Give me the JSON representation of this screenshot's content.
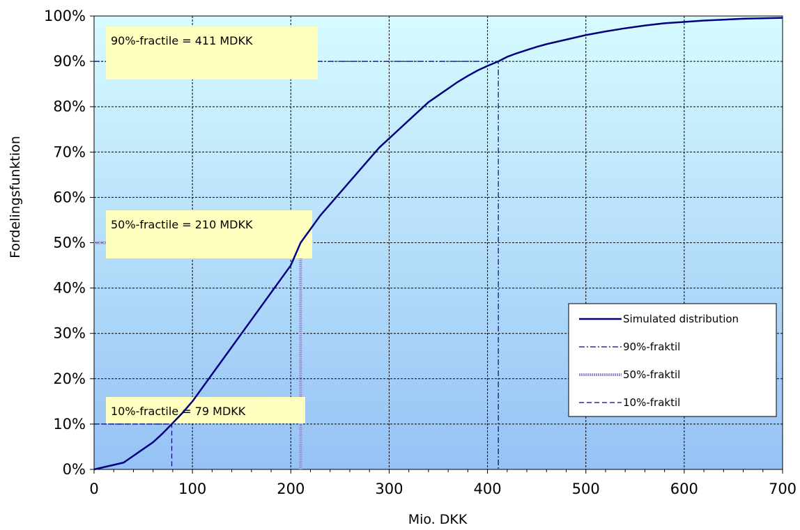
{
  "chart_data": {
    "type": "line",
    "xlabel": "Mio. DKK",
    "ylabel": "Fordelingsfunktion",
    "xlim": [
      0,
      700
    ],
    "ylim": [
      0,
      1
    ],
    "x_ticks": [
      0,
      100,
      200,
      300,
      400,
      500,
      600,
      700
    ],
    "x_tick_labels": [
      "0",
      "100",
      "200",
      "300",
      "400",
      "500",
      "600",
      "700"
    ],
    "y_ticks": [
      0,
      0.1,
      0.2,
      0.3,
      0.4,
      0.5,
      0.6,
      0.7,
      0.8,
      0.9,
      1.0
    ],
    "y_tick_labels": [
      "0%",
      "10%",
      "20%",
      "30%",
      "40%",
      "50%",
      "60%",
      "70%",
      "80%",
      "90%",
      "100%"
    ],
    "grid": true,
    "legend_position": "lower-right",
    "series": [
      {
        "name": "Simulated distribution",
        "color": "#000080",
        "style": "solid",
        "x": [
          0,
          10,
          20,
          30,
          40,
          50,
          60,
          70,
          79,
          90,
          100,
          110,
          120,
          130,
          140,
          150,
          160,
          170,
          180,
          190,
          200,
          210,
          220,
          230,
          240,
          250,
          260,
          270,
          280,
          290,
          300,
          310,
          320,
          330,
          340,
          350,
          360,
          370,
          380,
          390,
          400,
          411,
          420,
          430,
          440,
          450,
          460,
          470,
          480,
          490,
          500,
          520,
          540,
          560,
          580,
          600,
          620,
          640,
          660,
          680,
          700
        ],
        "y": [
          0.0,
          0.005,
          0.01,
          0.015,
          0.03,
          0.045,
          0.06,
          0.08,
          0.1,
          0.125,
          0.15,
          0.18,
          0.21,
          0.24,
          0.27,
          0.3,
          0.33,
          0.36,
          0.39,
          0.42,
          0.45,
          0.5,
          0.53,
          0.56,
          0.585,
          0.61,
          0.635,
          0.66,
          0.685,
          0.71,
          0.73,
          0.75,
          0.77,
          0.79,
          0.81,
          0.825,
          0.84,
          0.855,
          0.868,
          0.88,
          0.89,
          0.9,
          0.91,
          0.918,
          0.925,
          0.932,
          0.938,
          0.943,
          0.948,
          0.953,
          0.958,
          0.966,
          0.973,
          0.979,
          0.984,
          0.987,
          0.99,
          0.992,
          0.994,
          0.995,
          0.996
        ]
      },
      {
        "name": "90%-fraktil",
        "color": "#000080",
        "style": "dash-dot",
        "x": [
          0,
          411,
          411
        ],
        "y": [
          0.9,
          0.9,
          0
        ]
      },
      {
        "name": "50%-fraktil",
        "color": "#9a94d6",
        "style": "thick-hatched",
        "x": [
          0,
          210,
          210
        ],
        "y": [
          0.5,
          0.5,
          0
        ]
      },
      {
        "name": "10%-fraktil",
        "color": "#000080",
        "style": "dashed",
        "x": [
          0,
          79,
          79
        ],
        "y": [
          0.1,
          0.1,
          0
        ]
      }
    ],
    "annotations": [
      {
        "text": "90%-fractile = 411  MDKK",
        "x": 411,
        "y": 0.9
      },
      {
        "text": "50%-fractile = 210  MDKK",
        "x": 210,
        "y": 0.5
      },
      {
        "text": "10%-fractile = 79  MDKK",
        "x": 79,
        "y": 0.1
      }
    ]
  }
}
